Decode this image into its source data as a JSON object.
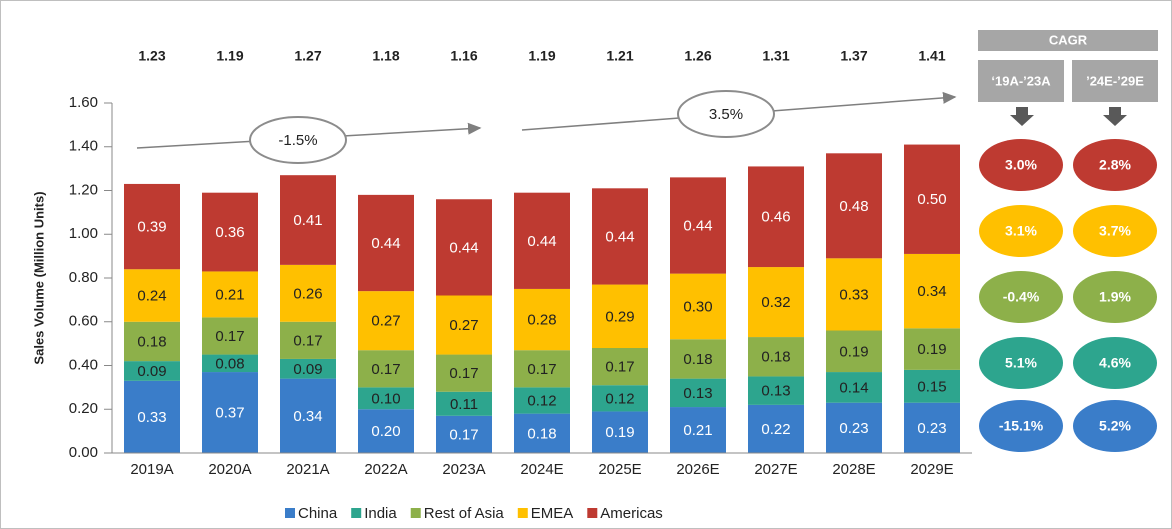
{
  "chart_data": {
    "type": "stacked_bar",
    "y_label": "Sales Volume (Million Units)",
    "categories": [
      "2019A",
      "2020A",
      "2021A",
      "2022A",
      "2023A",
      "2024E",
      "2025E",
      "2026E",
      "2027E",
      "2028E",
      "2029E"
    ],
    "series": [
      {
        "name": "China",
        "color": "#3a7dc9",
        "label_color": "#ffffff",
        "values": [
          0.33,
          0.37,
          0.34,
          0.2,
          0.17,
          0.18,
          0.19,
          0.21,
          0.22,
          0.23,
          0.23
        ],
        "value_labels": [
          "0.33",
          "0.37",
          "0.34",
          "0.20",
          "0.17",
          "0.18",
          "0.19",
          "0.21",
          "0.22",
          "0.23",
          "0.23"
        ]
      },
      {
        "name": "India",
        "color": "#2da58e",
        "label_color": "#222222",
        "values": [
          0.09,
          0.08,
          0.09,
          0.1,
          0.11,
          0.12,
          0.12,
          0.13,
          0.13,
          0.14,
          0.15
        ],
        "value_labels": [
          "0.09",
          "0.08",
          "0.09",
          "0.10",
          "0.11",
          "0.12",
          "0.12",
          "0.13",
          "0.13",
          "0.14",
          "0.15"
        ]
      },
      {
        "name": "Rest of Asia",
        "color": "#8db04a",
        "label_color": "#222222",
        "values": [
          0.18,
          0.17,
          0.17,
          0.17,
          0.17,
          0.17,
          0.17,
          0.18,
          0.18,
          0.19,
          0.19
        ],
        "value_labels": [
          "0.18",
          "0.17",
          "0.17",
          "0.17",
          "0.17",
          "0.17",
          "0.17",
          "0.18",
          "0.18",
          "0.19",
          "0.19"
        ]
      },
      {
        "name": "EMEA",
        "color": "#ffc000",
        "label_color": "#222222",
        "values": [
          0.24,
          0.21,
          0.26,
          0.27,
          0.27,
          0.28,
          0.29,
          0.3,
          0.32,
          0.33,
          0.34
        ],
        "value_labels": [
          "0.24",
          "0.21",
          "0.26",
          "0.27",
          "0.27",
          "0.28",
          "0.29",
          "0.30",
          "0.32",
          "0.33",
          "0.34"
        ]
      },
      {
        "name": "Americas",
        "color": "#be3a31",
        "label_color": "#ffffff",
        "values": [
          0.39,
          0.36,
          0.41,
          0.44,
          0.44,
          0.44,
          0.44,
          0.44,
          0.46,
          0.48,
          0.5
        ],
        "value_labels": [
          "0.39",
          "0.36",
          "0.41",
          "0.44",
          "0.44",
          "0.44",
          "0.44",
          "0.44",
          "0.46",
          "0.48",
          "0.50"
        ]
      }
    ],
    "totals": [
      1.23,
      1.19,
      1.27,
      1.18,
      1.16,
      1.19,
      1.21,
      1.26,
      1.31,
      1.37,
      1.41
    ],
    "ylim": [
      0,
      1.6
    ],
    "yticks": [
      {
        "value": 0,
        "label": "0.00"
      },
      {
        "value": 0.2,
        "label": "0.20"
      },
      {
        "value": 0.4,
        "label": "0.40"
      },
      {
        "value": 0.6,
        "label": "0.60"
      },
      {
        "value": 0.8,
        "label": "0.80"
      },
      {
        "value": 1.0,
        "label": "1.00"
      },
      {
        "value": 1.2,
        "label": "1.20"
      },
      {
        "value": 1.4,
        "label": "1.40"
      },
      {
        "value": 1.6,
        "label": "1.60"
      }
    ],
    "legend": "bottom",
    "annotations": [
      {
        "text": "-1.5%"
      },
      {
        "text": "3.5%"
      }
    ],
    "cagr_table": {
      "title": "CAGR",
      "columns": [
        "‘19A-’23A",
        "’24E-’29E"
      ],
      "rows": [
        {
          "color": "#be3a31",
          "values": [
            3.0,
            2.8
          ],
          "value_labels": [
            "3.0%",
            "2.8%"
          ]
        },
        {
          "color": "#ffc000",
          "values": [
            3.1,
            3.7
          ],
          "value_labels": [
            "3.1%",
            "3.7%"
          ]
        },
        {
          "color": "#8db04a",
          "values": [
            -0.4,
            1.9
          ],
          "value_labels": [
            "-0.4%",
            "1.9%"
          ]
        },
        {
          "color": "#2da58e",
          "values": [
            5.1,
            4.6
          ],
          "value_labels": [
            "5.1%",
            "4.6%"
          ]
        },
        {
          "color": "#3a7dc9",
          "values": [
            -15.1,
            5.2
          ],
          "value_labels": [
            "-15.1%",
            "5.2%"
          ]
        }
      ]
    }
  }
}
